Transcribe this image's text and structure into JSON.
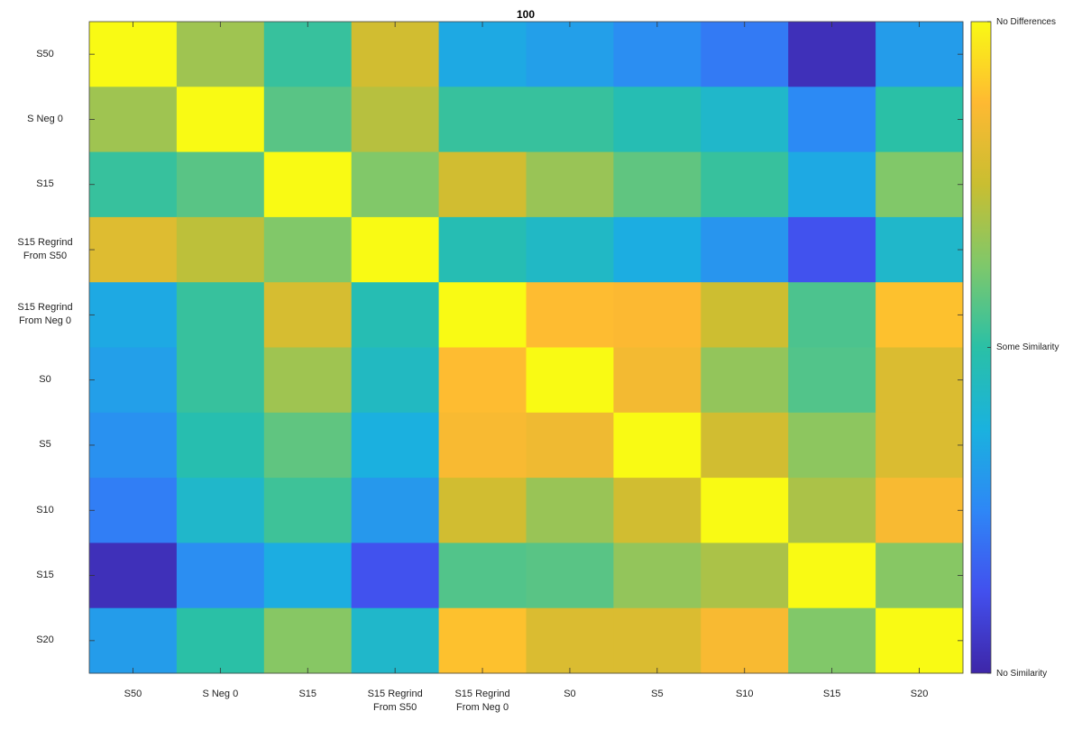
{
  "chart_data": {
    "type": "heatmap",
    "title": "100",
    "x_categories": [
      "S50",
      "S Neg 0",
      "S15",
      "S15 Regrind From S50",
      "S15 Regrind From Neg 0",
      "S0",
      "S5",
      "S10",
      "S15",
      "S20"
    ],
    "y_categories": [
      "S50",
      "S Neg 0",
      "S15",
      "S15 Regrind From S50",
      "S15 Regrind From Neg 0",
      "S0",
      "S5",
      "S10",
      "S15",
      "S20"
    ],
    "values": [
      [
        1,
        0.68,
        0.52,
        0.77,
        0.35,
        0.32,
        0.27,
        0.22,
        0.03,
        0.31
      ],
      [
        0.68,
        1,
        0.57,
        0.72,
        0.52,
        0.52,
        0.47,
        0.42,
        0.26,
        0.5
      ],
      [
        0.52,
        0.57,
        1,
        0.63,
        0.77,
        0.67,
        0.58,
        0.52,
        0.35,
        0.63
      ],
      [
        0.8,
        0.73,
        0.63,
        1,
        0.47,
        0.43,
        0.36,
        0.29,
        0.13,
        0.42
      ],
      [
        0.35,
        0.52,
        0.78,
        0.47,
        1,
        0.88,
        0.87,
        0.76,
        0.55,
        0.89
      ],
      [
        0.32,
        0.52,
        0.68,
        0.44,
        0.88,
        1,
        0.85,
        0.66,
        0.56,
        0.79
      ],
      [
        0.28,
        0.48,
        0.58,
        0.37,
        0.86,
        0.84,
        1,
        0.77,
        0.65,
        0.79
      ],
      [
        0.23,
        0.42,
        0.53,
        0.3,
        0.77,
        0.67,
        0.77,
        1,
        0.7,
        0.86
      ],
      [
        0.03,
        0.27,
        0.36,
        0.13,
        0.56,
        0.57,
        0.66,
        0.7,
        1,
        0.64
      ],
      [
        0.31,
        0.5,
        0.64,
        0.42,
        0.89,
        0.79,
        0.79,
        0.86,
        0.63,
        1
      ]
    ],
    "colormap": [
      "#3e26a8",
      "#4250ee",
      "#2e87f6",
      "#1ab2de",
      "#2ac0a6",
      "#7ec86b",
      "#c9be31",
      "#feb932",
      "#f9fa14"
    ],
    "clim": [
      0,
      1
    ],
    "colorbar_ticks": [
      {
        "value": 1,
        "label": "No Differences"
      },
      {
        "value": 0.5,
        "label": "Some Similarity"
      },
      {
        "value": 0,
        "label": "No Similarity"
      }
    ]
  }
}
